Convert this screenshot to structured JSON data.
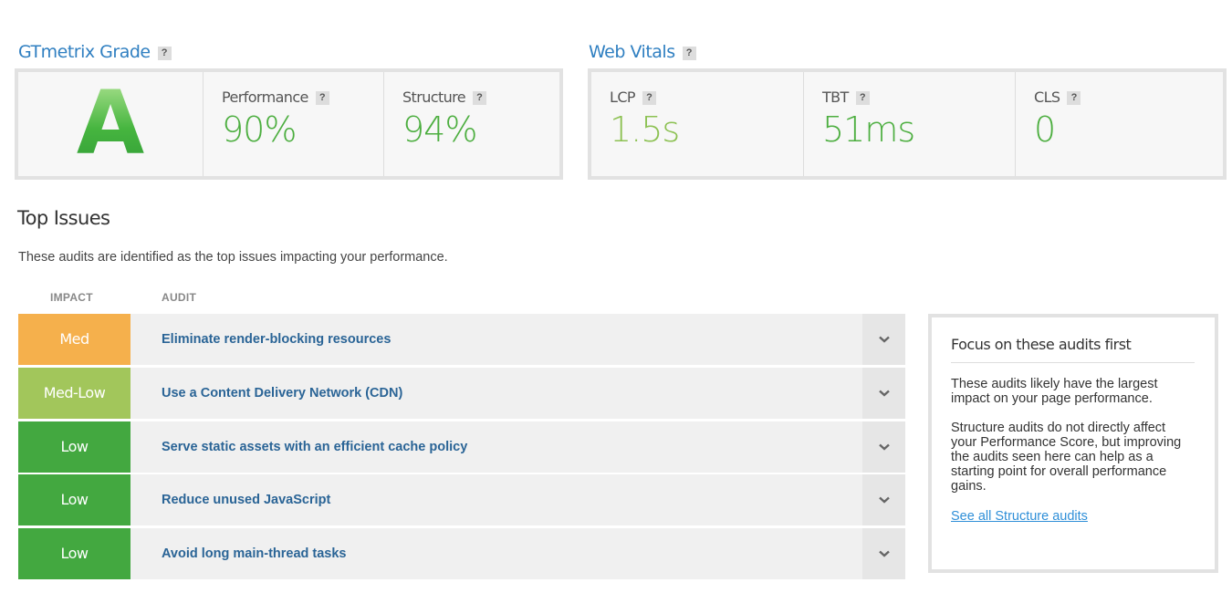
{
  "help_label": "?",
  "grade": {
    "title": "GTmetrix Grade",
    "letter": "A",
    "metrics": [
      {
        "label": "Performance",
        "value": "90%"
      },
      {
        "label": "Structure",
        "value": "94%"
      }
    ]
  },
  "vitals": {
    "title": "Web Vitals",
    "metrics": [
      {
        "label": "LCP",
        "value": "1.5s"
      },
      {
        "label": "TBT",
        "value": "51ms"
      },
      {
        "label": "CLS",
        "value": "0"
      }
    ]
  },
  "issues": {
    "title": "Top Issues",
    "description": "These audits are identified as the top issues impacting your performance.",
    "headers": [
      "IMPACT",
      "AUDIT"
    ],
    "rows": [
      {
        "impact": "Med",
        "audit": "Eliminate render-blocking resources"
      },
      {
        "impact": "Med-Low",
        "audit": "Use a Content Delivery Network (CDN)"
      },
      {
        "impact": "Low",
        "audit": "Serve static assets with an efficient cache policy"
      },
      {
        "impact": "Low",
        "audit": "Reduce unused JavaScript"
      },
      {
        "impact": "Low",
        "audit": "Avoid long main-thread tasks"
      }
    ]
  },
  "focus": {
    "title": "Focus on these audits first",
    "paragraphs": [
      "These audits likely have the largest impact on your page performance.",
      "Structure audits do not directly affect your Performance Score, but improving the audits seen here can help as a starting point for overall performance gains."
    ],
    "link": "See all Structure audits"
  }
}
